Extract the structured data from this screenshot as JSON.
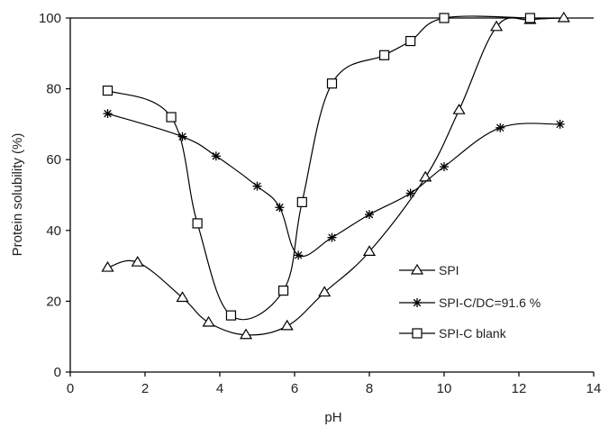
{
  "chart_data": {
    "type": "line",
    "title": "",
    "xlabel": "pH",
    "ylabel": "Protein solubility (%)",
    "xlim": [
      0,
      14
    ],
    "ylim": [
      0,
      100
    ],
    "xticks": [
      "0",
      "2",
      "4",
      "6",
      "8",
      "10",
      "12",
      "14"
    ],
    "yticks": [
      "0",
      "20",
      "40",
      "60",
      "80",
      "100"
    ],
    "grid": false,
    "legend_position": "lower-right",
    "series": [
      {
        "name": "SPI",
        "marker": "triangle",
        "x": [
          1.0,
          1.8,
          3.0,
          3.7,
          4.7,
          5.8,
          6.8,
          8.0,
          9.5,
          10.4,
          11.4,
          12.3,
          13.2
        ],
        "y": [
          29.5,
          31,
          21,
          14,
          10.5,
          13,
          22.5,
          34,
          55,
          74,
          97.5,
          99.5,
          100
        ]
      },
      {
        "name": "SPI-C/DC=91.6 %",
        "marker": "star",
        "x": [
          1.0,
          3.0,
          3.9,
          5.0,
          5.6,
          6.1,
          7.0,
          8.0,
          9.1,
          10.0,
          11.5,
          13.1
        ],
        "y": [
          73,
          66.5,
          61,
          52.5,
          46.5,
          33,
          38,
          44.5,
          50.5,
          58,
          69,
          70
        ]
      },
      {
        "name": "SPI-C blank",
        "marker": "square",
        "x": [
          1.0,
          2.7,
          3.4,
          4.3,
          5.7,
          6.2,
          7.0,
          8.4,
          9.1,
          10.0,
          12.3
        ],
        "y": [
          79.5,
          72,
          42,
          16,
          23,
          48,
          81.5,
          89.5,
          93.5,
          100,
          100
        ]
      }
    ]
  }
}
